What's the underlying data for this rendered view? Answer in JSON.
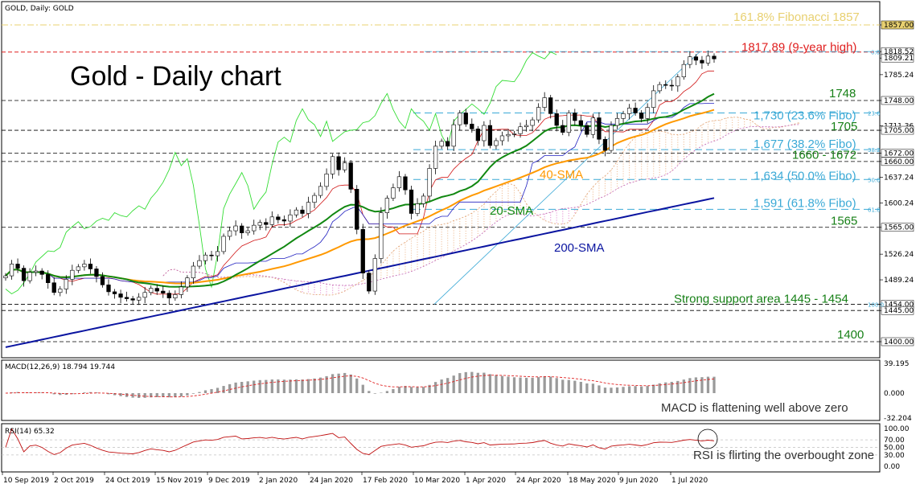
{
  "header": {
    "symbol": "GOLD, Daily:  GOLD",
    "chart_title": "Gold - Daily chart"
  },
  "chart_data": {
    "type": "candlestick",
    "instrument": "GOLD",
    "timeframe": "Daily",
    "price_axis": {
      "ticks": [
        "1857.00",
        "1818.52",
        "1809.21",
        "1785.24",
        "1748.00",
        "1711.36",
        "1705.00",
        "1672.00",
        "1660.00",
        "1637.24",
        "1600.24",
        "1565.00",
        "1526.24",
        "1489.24",
        "1454.00",
        "1445.00",
        "1400.00"
      ]
    },
    "date_axis": [
      "10 Sep 2019",
      "2 Oct 2019",
      "24 Oct 2019",
      "15 Nov 2019",
      "9 Dec 2019",
      "2 Jan 2020",
      "24 Jan 2020",
      "17 Feb 2020",
      "10 Mar 2020",
      "1 Apr 2020",
      "24 Apr 2020",
      "18 May 2020",
      "9 Jun 2020",
      "1 Jul 2020"
    ],
    "close_series": [
      1495,
      1512,
      1506,
      1488,
      1500,
      1502,
      1497,
      1485,
      1471,
      1476,
      1490,
      1503,
      1508,
      1512,
      1505,
      1494,
      1482,
      1472,
      1469,
      1464,
      1462,
      1460,
      1464,
      1471,
      1477,
      1473,
      1470,
      1463,
      1468,
      1479,
      1492,
      1509,
      1517,
      1525,
      1524,
      1530,
      1552,
      1560,
      1567,
      1557,
      1560,
      1568,
      1572,
      1569,
      1580,
      1576,
      1574,
      1583,
      1590,
      1585,
      1601,
      1611,
      1624,
      1642,
      1667,
      1648,
      1658,
      1620,
      1562,
      1499,
      1473,
      1520,
      1586,
      1607,
      1622,
      1638,
      1619,
      1585,
      1599,
      1610,
      1650,
      1682,
      1689,
      1682,
      1713,
      1730,
      1714,
      1707,
      1690,
      1712,
      1683,
      1690,
      1697,
      1699,
      1700,
      1710,
      1712,
      1720,
      1738,
      1752,
      1729,
      1712,
      1702,
      1730,
      1719,
      1712,
      1699,
      1723,
      1692,
      1676,
      1712,
      1722,
      1729,
      1737,
      1730,
      1722,
      1738,
      1762,
      1771,
      1770,
      1769,
      1782,
      1800,
      1811,
      1806,
      1802,
      1812,
      1808
    ],
    "moving_averages": [
      {
        "name": "20-SMA",
        "color": "#118811"
      },
      {
        "name": "40-SMA",
        "color": "#ff9900"
      },
      {
        "name": "200-SMA",
        "color": "#0a14a0"
      }
    ],
    "horizontal_levels": [
      {
        "value": 1857,
        "label": "161.8% Fibonacci 1857",
        "color": "#e8d070",
        "style": "dash-dot"
      },
      {
        "value": 1817.89,
        "label": "1817.89 (9-year high)",
        "color": "#e02020",
        "style": "dash"
      },
      {
        "value": 1748,
        "label": "1748",
        "color": "#178017",
        "style": "dash"
      },
      {
        "value": 1730,
        "label": "1,730 (23.6% Fibo)",
        "color": "#3aa9d6",
        "style": "dash",
        "tag": "23.6"
      },
      {
        "value": 1705,
        "label": "1705",
        "color": "#178017",
        "style": "dash"
      },
      {
        "value": 1677,
        "label": "1,677 (38.2% Fibo)",
        "color": "#3aa9d6",
        "style": "dash",
        "tag": "38.2"
      },
      {
        "value": 1672,
        "label": "1660 - 1672",
        "color": "#178017",
        "style": "dash"
      },
      {
        "value": 1660,
        "label": "",
        "color": "#178017",
        "style": "dash"
      },
      {
        "value": 1634,
        "label": "1,634 (50.0% Fibo)",
        "color": "#3aa9d6",
        "style": "dash",
        "tag": "50.0"
      },
      {
        "value": 1591,
        "label": "1,591 (61.8% Fibo)",
        "color": "#3aa9d6",
        "style": "dash",
        "tag": "61.8"
      },
      {
        "value": 1565,
        "label": "1565",
        "color": "#178017",
        "style": "dash"
      },
      {
        "value": 1454,
        "label": "Strong support area 1445 - 1454",
        "color": "#178017",
        "style": "dash",
        "tag": "100.0"
      },
      {
        "value": 1445,
        "label": "",
        "color": "#178017",
        "style": "dash"
      },
      {
        "value": 1400,
        "label": "1400",
        "color": "#178017",
        "style": "dash"
      }
    ],
    "fibo_tag_top": "0.0",
    "macd": {
      "label": "MACD(12,26,9) 18.794 19.744",
      "ticks": [
        "39.195",
        "0.000",
        "-32.204"
      ],
      "annotation": "MACD is flattening well above zero"
    },
    "rsi": {
      "label": "RSI(14) 65.32",
      "ticks": [
        "100.00",
        "70.00",
        "50.00",
        "30.00",
        "0.00"
      ],
      "annotation": "RSI is flirting the overbought zone"
    }
  }
}
